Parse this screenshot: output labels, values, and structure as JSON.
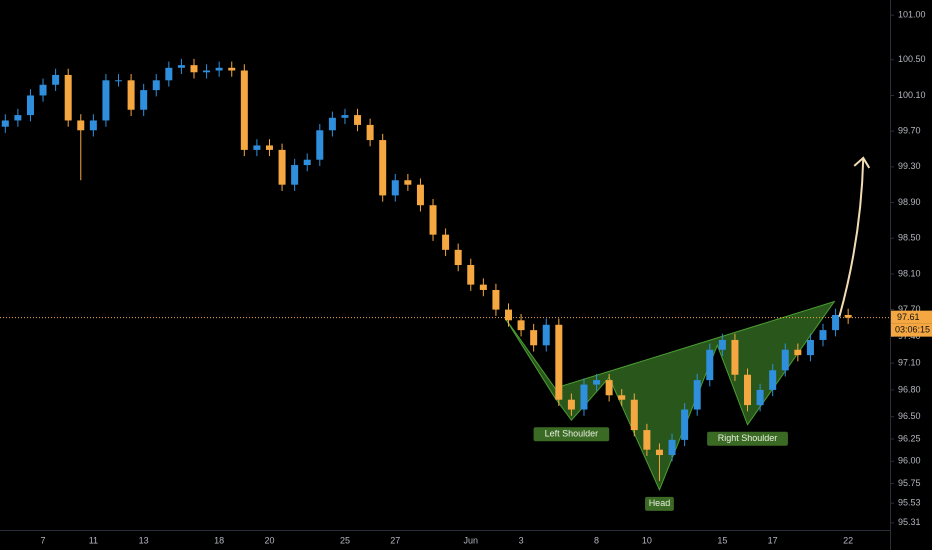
{
  "chart_data": {
    "type": "candlestick",
    "categories": [
      null,
      null,
      null,
      "7",
      null,
      null,
      null,
      "11",
      null,
      null,
      null,
      "13",
      null,
      null,
      null,
      null,
      null,
      "18",
      null,
      null,
      null,
      "20",
      null,
      null,
      null,
      null,
      null,
      "25",
      null,
      null,
      null,
      "27",
      null,
      null,
      null,
      null,
      null,
      "Jun",
      null,
      null,
      null,
      "3",
      null,
      null,
      null,
      null,
      null,
      "8",
      null,
      null,
      null,
      "10",
      null,
      null,
      null,
      null,
      null,
      "15",
      null,
      null,
      null,
      "17",
      null,
      null,
      null,
      null,
      null,
      "22"
    ],
    "open": [
      99.75,
      99.82,
      99.88,
      100.1,
      100.22,
      100.33,
      99.82,
      99.71,
      99.82,
      100.27,
      100.27,
      99.94,
      100.16,
      100.27,
      100.41,
      100.44,
      100.36,
      100.38,
      100.41,
      100.38,
      99.49,
      99.54,
      99.49,
      99.1,
      99.32,
      99.38,
      99.71,
      99.85,
      99.88,
      99.77,
      99.6,
      98.98,
      99.15,
      99.1,
      98.87,
      98.54,
      98.37,
      98.2,
      97.98,
      97.92,
      97.7,
      97.58,
      97.47,
      97.3,
      97.53,
      96.69,
      96.58,
      96.86,
      96.91,
      96.74,
      96.69,
      96.35,
      96.13,
      96.07,
      96.24,
      96.58,
      96.91,
      97.25,
      97.36,
      96.97,
      96.63,
      96.8,
      97.02,
      97.25,
      97.19,
      97.36,
      97.47,
      97.64
    ],
    "high": [
      99.89,
      99.95,
      100.17,
      100.29,
      100.4,
      100.4,
      99.89,
      99.89,
      100.34,
      100.34,
      100.34,
      100.23,
      100.34,
      100.48,
      100.51,
      100.51,
      100.45,
      100.48,
      100.48,
      100.45,
      99.61,
      99.61,
      99.56,
      99.39,
      99.45,
      99.78,
      99.92,
      99.95,
      99.95,
      99.84,
      99.67,
      99.22,
      99.22,
      99.17,
      98.94,
      98.61,
      98.44,
      98.27,
      98.05,
      97.99,
      97.77,
      97.65,
      97.54,
      97.6,
      97.6,
      96.76,
      96.93,
      96.98,
      96.98,
      96.81,
      96.76,
      96.42,
      96.2,
      96.31,
      96.65,
      96.98,
      97.32,
      97.43,
      97.43,
      97.04,
      96.87,
      97.09,
      97.32,
      97.32,
      97.43,
      97.54,
      97.71,
      97.71
    ],
    "low": [
      99.68,
      99.75,
      99.81,
      100.03,
      100.15,
      99.75,
      99.15,
      99.64,
      99.75,
      100.2,
      99.87,
      99.87,
      100.09,
      100.2,
      100.34,
      100.29,
      100.29,
      100.31,
      100.31,
      99.42,
      99.42,
      99.42,
      99.03,
      99.03,
      99.25,
      99.31,
      99.64,
      99.78,
      99.7,
      99.53,
      98.91,
      98.91,
      99.03,
      98.8,
      98.47,
      98.3,
      98.13,
      97.91,
      97.85,
      97.63,
      97.51,
      97.4,
      97.23,
      97.23,
      96.62,
      96.51,
      96.51,
      96.79,
      96.67,
      96.62,
      96.28,
      96.06,
      95.78,
      96.0,
      96.17,
      96.51,
      96.84,
      97.18,
      96.9,
      96.56,
      96.56,
      96.73,
      96.95,
      97.12,
      97.12,
      97.29,
      97.4,
      97.54
    ],
    "close": [
      99.82,
      99.88,
      100.1,
      100.22,
      100.33,
      99.82,
      99.71,
      99.82,
      100.27,
      100.27,
      99.94,
      100.16,
      100.27,
      100.41,
      100.44,
      100.36,
      100.38,
      100.41,
      100.38,
      99.49,
      99.54,
      99.49,
      99.1,
      99.32,
      99.38,
      99.71,
      99.85,
      99.88,
      99.77,
      99.6,
      98.98,
      99.15,
      99.1,
      98.87,
      98.54,
      98.37,
      98.2,
      97.98,
      97.92,
      97.7,
      97.58,
      97.47,
      97.3,
      97.53,
      96.69,
      96.58,
      96.86,
      96.91,
      96.74,
      96.69,
      96.35,
      96.13,
      96.07,
      96.24,
      96.58,
      96.91,
      97.25,
      97.36,
      96.97,
      96.63,
      96.8,
      97.02,
      97.25,
      97.19,
      97.36,
      97.47,
      97.64,
      97.61
    ],
    "up_color": "#2f8fdd",
    "down_color": "#f5a742",
    "ylim": [
      95.23,
      101.17
    ],
    "yticks": [
      {
        "value": 101.0,
        "label": "101.00"
      },
      {
        "value": 100.5,
        "label": "100.50"
      },
      {
        "value": 100.1,
        "label": "100.10"
      },
      {
        "value": 99.7,
        "label": "99.70"
      },
      {
        "value": 99.3,
        "label": "99.30"
      },
      {
        "value": 98.9,
        "label": "98.90"
      },
      {
        "value": 98.5,
        "label": "98.50"
      },
      {
        "value": 98.1,
        "label": "98.10"
      },
      {
        "value": 97.7,
        "label": "97.70"
      },
      {
        "value": 97.4,
        "label": "97.40"
      },
      {
        "value": 97.1,
        "label": "97.10"
      },
      {
        "value": 96.8,
        "label": "96.80"
      },
      {
        "value": 96.5,
        "label": "96.50"
      },
      {
        "value": 96.25,
        "label": "96.25"
      },
      {
        "value": 96.0,
        "label": "96.00"
      },
      {
        "value": 95.75,
        "label": "95.75"
      },
      {
        "value": 95.53,
        "label": "95.53"
      },
      {
        "value": 95.31,
        "label": "95.31"
      }
    ],
    "last_price": 97.61,
    "last_price_color": "#f5a742",
    "countdown": "03:06:15",
    "pattern": {
      "color": "#4a9e32",
      "x": [
        39.7,
        43.7,
        45.0,
        48.0,
        52.0,
        56.6,
        59.0,
        65.9,
        43.7
      ],
      "y": [
        97.61,
        96.71,
        96.46,
        96.94,
        95.68,
        97.3,
        96.41,
        97.79,
        96.82
      ]
    },
    "arrow": {
      "color": "#f3dcb4",
      "x": [
        66.3,
        68.2
      ],
      "y": [
        97.62,
        99.4
      ]
    },
    "annotations": [
      {
        "text": "Left Shoulder",
        "point": 2
      },
      {
        "text": "Head",
        "point": 4
      },
      {
        "text": "Right Shoulder",
        "point": 6
      }
    ]
  }
}
